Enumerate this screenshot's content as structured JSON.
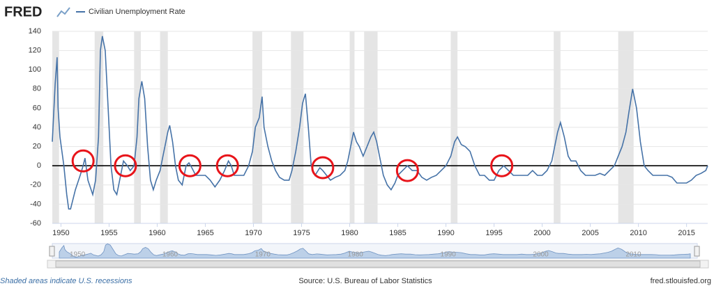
{
  "brand": "FRED",
  "chart_data": {
    "type": "line",
    "series": [
      {
        "name": "Civilian Unemployment Rate",
        "color": "#4572a7",
        "x": [
          1949.1,
          1949.4,
          1949.6,
          1949.7,
          1949.9,
          1950.3,
          1950.6,
          1950.8,
          1951.0,
          1951.5,
          1952.0,
          1952.3,
          1952.5,
          1952.8,
          1953.3,
          1953.6,
          1953.9,
          1954.1,
          1954.3,
          1954.6,
          1954.9,
          1955.2,
          1955.5,
          1955.8,
          1956.2,
          1956.5,
          1956.9,
          1957.2,
          1957.6,
          1957.9,
          1958.1,
          1958.4,
          1958.7,
          1959.0,
          1959.3,
          1959.6,
          1959.9,
          1960.3,
          1960.6,
          1960.9,
          1961.1,
          1961.3,
          1961.6,
          1961.9,
          1962.2,
          1962.6,
          1963.0,
          1963.3,
          1963.6,
          1964.0,
          1964.5,
          1965.0,
          1965.5,
          1966.0,
          1966.5,
          1967.0,
          1967.4,
          1967.7,
          1968.0,
          1968.5,
          1969.0,
          1969.5,
          1969.9,
          1970.2,
          1970.6,
          1970.9,
          1971.1,
          1971.5,
          1971.9,
          1972.3,
          1972.7,
          1973.2,
          1973.7,
          1974.0,
          1974.4,
          1974.8,
          1975.1,
          1975.4,
          1975.7,
          1976.0,
          1976.4,
          1976.9,
          1977.2,
          1977.6,
          1978.0,
          1978.5,
          1979.0,
          1979.5,
          1979.8,
          1980.1,
          1980.4,
          1980.7,
          1981.0,
          1981.4,
          1981.8,
          1982.2,
          1982.5,
          1982.8,
          1983.1,
          1983.5,
          1983.9,
          1984.3,
          1984.7,
          1985.0,
          1985.5,
          1986.0,
          1986.5,
          1987.0,
          1987.5,
          1988.0,
          1988.5,
          1989.0,
          1989.5,
          1990.0,
          1990.5,
          1990.9,
          1991.2,
          1991.6,
          1992.0,
          1992.5,
          1993.0,
          1993.5,
          1994.0,
          1994.5,
          1995.0,
          1995.5,
          1996.0,
          1996.5,
          1997.0,
          1997.5,
          1998.0,
          1998.5,
          1999.0,
          1999.5,
          2000.0,
          2000.5,
          2001.0,
          2001.3,
          2001.6,
          2001.9,
          2002.3,
          2002.7,
          2003.0,
          2003.5,
          2004.0,
          2004.5,
          2005.0,
          2005.5,
          2006.0,
          2006.5,
          2007.0,
          2007.5,
          2007.9,
          2008.3,
          2008.7,
          2009.0,
          2009.4,
          2009.8,
          2010.2,
          2010.6,
          2011.0,
          2011.5,
          2012.0,
          2012.5,
          2013.0,
          2013.5,
          2014.0,
          2014.5,
          2015.0,
          2015.5,
          2016.0,
          2016.5,
          2017.0,
          2017.2
        ],
        "values": [
          25,
          85,
          113,
          60,
          30,
          0,
          -30,
          -45,
          -45,
          -25,
          -10,
          0,
          8,
          -15,
          -30,
          -15,
          30,
          120,
          135,
          120,
          60,
          0,
          -25,
          -30,
          -10,
          5,
          0,
          -5,
          0,
          30,
          70,
          88,
          70,
          20,
          -15,
          -25,
          -15,
          -5,
          10,
          25,
          35,
          42,
          25,
          0,
          -15,
          -20,
          0,
          3,
          -2,
          -10,
          -10,
          -10,
          -15,
          -22,
          -15,
          -5,
          5,
          0,
          -10,
          -10,
          -10,
          0,
          15,
          40,
          50,
          72,
          40,
          20,
          5,
          -5,
          -12,
          -15,
          -15,
          -5,
          15,
          40,
          65,
          75,
          40,
          0,
          -10,
          -2,
          -5,
          -10,
          -15,
          -12,
          -10,
          -5,
          5,
          20,
          35,
          25,
          20,
          10,
          20,
          30,
          35,
          25,
          10,
          -10,
          -20,
          -25,
          -18,
          -10,
          -5,
          0,
          -5,
          -5,
          -12,
          -15,
          -12,
          -10,
          -5,
          0,
          10,
          25,
          30,
          22,
          20,
          15,
          0,
          -10,
          -10,
          -15,
          -15,
          -5,
          0,
          -5,
          -10,
          -10,
          -10,
          -10,
          -5,
          -10,
          -10,
          -5,
          5,
          20,
          35,
          45,
          30,
          10,
          5,
          5,
          -5,
          -10,
          -10,
          -10,
          -8,
          -10,
          -5,
          0,
          10,
          20,
          35,
          55,
          80,
          60,
          25,
          0,
          -5,
          -10,
          -10,
          -10,
          -10,
          -12,
          -18,
          -18,
          -18,
          -15,
          -10,
          -8,
          -5,
          0
        ]
      }
    ],
    "xlim": [
      1949.1,
      2017.2
    ],
    "xticks": [
      1950,
      1955,
      1960,
      1965,
      1970,
      1975,
      1980,
      1985,
      1990,
      1995,
      2000,
      2005,
      2010,
      2015
    ],
    "ylim": [
      -60,
      140
    ],
    "yticks": [
      -60,
      -40,
      -20,
      0,
      20,
      40,
      60,
      80,
      100,
      120,
      140
    ],
    "grid": true,
    "reference_line": 0,
    "recessions": [
      [
        1948.9,
        1949.8
      ],
      [
        1953.5,
        1954.4
      ],
      [
        1957.6,
        1958.3
      ],
      [
        1960.3,
        1961.1
      ],
      [
        1969.9,
        1970.9
      ],
      [
        1973.9,
        1975.2
      ],
      [
        1980.0,
        1980.5
      ],
      [
        1981.5,
        1982.9
      ],
      [
        1990.5,
        1991.2
      ],
      [
        2001.2,
        2001.9
      ],
      [
        2007.9,
        2009.5
      ]
    ],
    "highlighted_points": {
      "x": [
        1952.3,
        1956.7,
        1963.4,
        1967.3,
        1977.2,
        1986.0,
        1995.8
      ],
      "y": [
        5,
        0,
        0,
        0,
        -2,
        -5,
        0
      ]
    },
    "note": "Shaded areas indicate U.S. recessions",
    "source": "Source: U.S. Bureau of Labor Statistics",
    "site": "fred.stlouisfed.org"
  }
}
